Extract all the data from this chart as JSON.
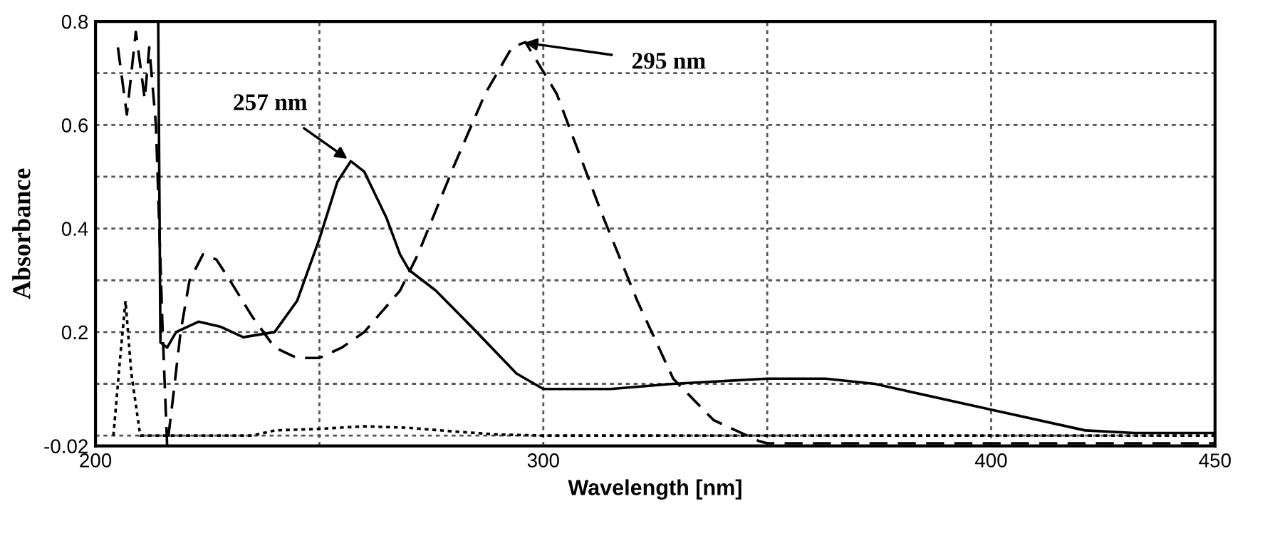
{
  "chart_data": {
    "type": "line",
    "xlabel": "Wavelength [nm]",
    "ylabel": "Absorbance",
    "xlim": [
      200,
      450
    ],
    "ylim": [
      -0.02,
      0.8
    ],
    "xticks": [
      200,
      {
        "value": 250,
        "label": null
      },
      300,
      {
        "value": 350,
        "label": null
      },
      400,
      450
    ],
    "yticks": [
      -0.02,
      {
        "value": 0,
        "label": null
      },
      {
        "value": 0.1,
        "label": null
      },
      0.2,
      {
        "value": 0.3,
        "label": null
      },
      0.4,
      {
        "value": 0.5,
        "label": null
      },
      0.6,
      {
        "value": 0.7,
        "label": null
      },
      0.8
    ],
    "grid": true,
    "marker": "none",
    "series": [
      {
        "color": "#000000",
        "line_style": "solid",
        "x": [
          214,
          214.5,
          216,
          218,
          223,
          228,
          233,
          240,
          245,
          250,
          254,
          257,
          260,
          265,
          268,
          270,
          276,
          284,
          294,
          300,
          315,
          329,
          350,
          363,
          374,
          400,
          421,
          432,
          450
        ],
        "values": [
          0.8,
          0.18,
          0.17,
          0.2,
          0.22,
          0.21,
          0.19,
          0.2,
          0.26,
          0.38,
          0.49,
          0.53,
          0.51,
          0.42,
          0.35,
          0.32,
          0.28,
          0.21,
          0.12,
          0.09,
          0.09,
          0.1,
          0.11,
          0.11,
          0.1,
          0.05,
          0.01,
          0.005,
          0.005
        ]
      },
      {
        "color": "#000000",
        "line_style": "dashed",
        "x": [
          205,
          207,
          209,
          211,
          212,
          213.5,
          215,
          216,
          217,
          219,
          221,
          224,
          227,
          230,
          235,
          240,
          245,
          250,
          255,
          260,
          265,
          268,
          272,
          280,
          287,
          293,
          296,
          303,
          313,
          321,
          329,
          338,
          348,
          350,
          450
        ],
        "values": [
          0.75,
          0.62,
          0.78,
          0.65,
          0.75,
          0.6,
          0.2,
          -0.02,
          0.05,
          0.2,
          0.3,
          0.35,
          0.34,
          0.3,
          0.23,
          0.17,
          0.15,
          0.15,
          0.17,
          0.2,
          0.25,
          0.28,
          0.35,
          0.52,
          0.66,
          0.75,
          0.76,
          0.66,
          0.43,
          0.26,
          0.11,
          0.03,
          -0.01,
          -0.015,
          -0.015
        ]
      },
      {
        "color": "#000000",
        "line_style": "dotted",
        "x": [
          204,
          205.5,
          206.7,
          208,
          210,
          235,
          240,
          250,
          260,
          270,
          280,
          290,
          300,
          450
        ],
        "values": [
          0.0,
          0.15,
          0.26,
          0.12,
          0.0,
          0.0,
          0.01,
          0.013,
          0.018,
          0.015,
          0.008,
          0.002,
          0.0,
          0.0
        ]
      }
    ],
    "annotations": [
      {
        "text": "257 nm",
        "x": 257,
        "y": 0.53
      },
      {
        "text": "295 nm",
        "x": 295,
        "y": 0.76
      }
    ]
  }
}
